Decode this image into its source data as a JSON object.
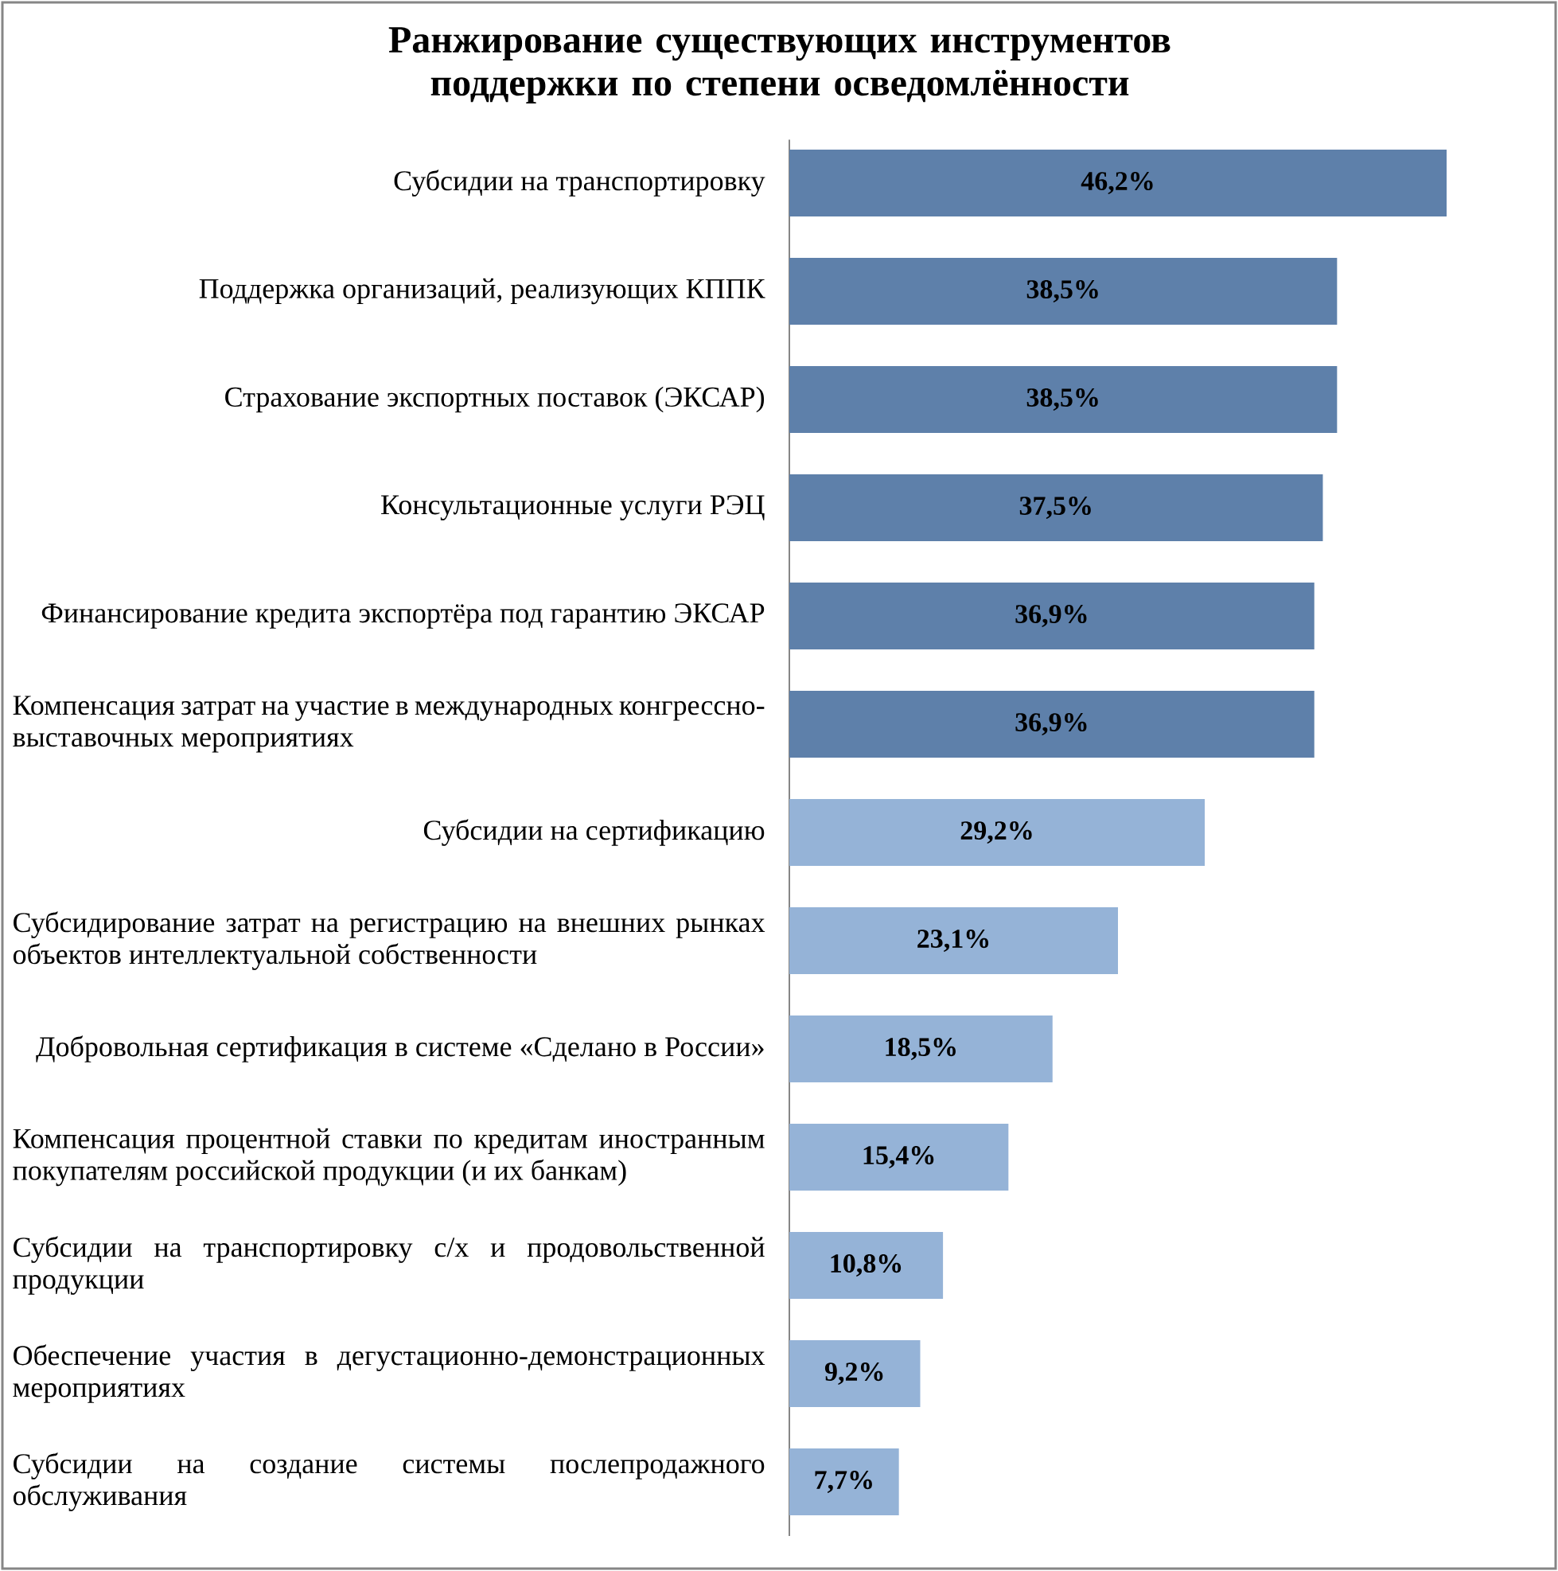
{
  "chart_data": {
    "type": "bar",
    "orientation": "horizontal",
    "title": "Ранжирование существующих инструментов поддержки по степени осведомлённости",
    "categories": [
      "Субсидии на транспортировку",
      "Поддержка организаций, реализующих КППК",
      "Страхование экспортных поставок (ЭКСАР)",
      "Консультационные услуги РЭЦ",
      "Финансирование кредита экспортёра под гарантию ЭКСАР",
      "Компенсация затрат на участие в международных конгрессно-выставочных мероприятиях",
      "Субсидии на сертификацию",
      "Субсидирование затрат на регистрацию на внешних рынках объектов интеллектуальной собственности",
      "Добровольная сертификация в системе «Сделано в России»",
      "Компенсация процентной ставки по кредитам иностранным покупателям российской продукции (и их банкам)",
      "Субсидии на транспортировку с/х и продовольственной продукции",
      "Обеспечение участия в дегустационно-демонстрационных мероприятиях",
      "Субсидии на создание системы послепродажного обслуживания"
    ],
    "values": [
      46.2,
      38.5,
      38.5,
      37.5,
      36.9,
      36.9,
      29.2,
      23.1,
      18.5,
      15.4,
      10.8,
      9.2,
      7.7
    ],
    "colors": [
      "#5e80aa",
      "#5e80aa",
      "#5e80aa",
      "#5e80aa",
      "#5e80aa",
      "#5e80aa",
      "#95b3d7",
      "#95b3d7",
      "#95b3d7",
      "#95b3d7",
      "#95b3d7",
      "#95b3d7",
      "#95b3d7"
    ],
    "value_labels": [
      "46,2%",
      "38,5%",
      "38,5%",
      "37,5%",
      "36,9%",
      "36,9%",
      "29,2%",
      "23,1%",
      "18,5%",
      "15,4%",
      "10,8%",
      "9,2%",
      "7,7%"
    ]
  }
}
